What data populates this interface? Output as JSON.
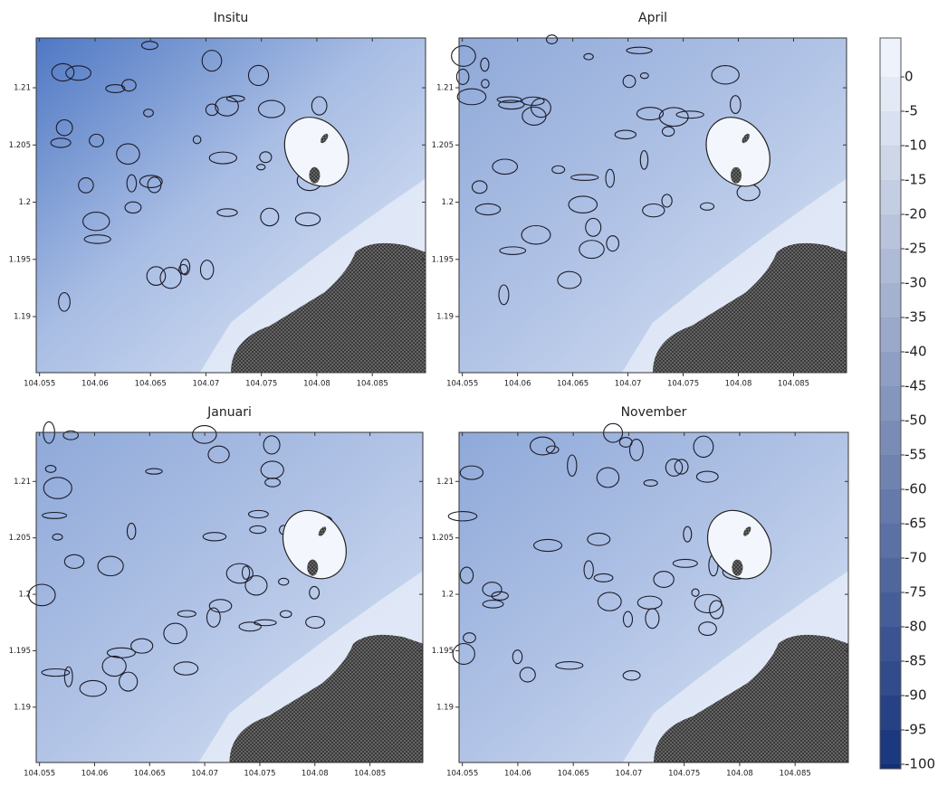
{
  "panels": [
    {
      "title": "Insitu",
      "xlim": [
        104.0547,
        104.0898
      ],
      "ylim": [
        1.1851,
        1.21435
      ],
      "xticks": [
        104.055,
        104.06,
        104.065,
        104.07,
        104.075,
        104.08,
        104.085
      ],
      "yticks": [
        1.19,
        1.195,
        1.2,
        1.205,
        1.21
      ]
    },
    {
      "title": "April",
      "xlim": [
        104.0547,
        104.0898
      ],
      "ylim": [
        1.1851,
        1.21435
      ],
      "xticks": [
        104.055,
        104.06,
        104.065,
        104.07,
        104.075,
        104.08,
        104.085
      ],
      "yticks": [
        1.19,
        1.195,
        1.2,
        1.205,
        1.21
      ]
    },
    {
      "title": "Januari",
      "xlim": [
        104.0547,
        104.0898
      ],
      "ylim": [
        1.1851,
        1.21435
      ],
      "xticks": [
        104.055,
        104.06,
        104.065,
        104.07,
        104.075,
        104.08,
        104.085
      ],
      "yticks": [
        1.19,
        1.195,
        1.2,
        1.205,
        1.21
      ]
    },
    {
      "title": "November",
      "xlim": [
        104.0547,
        104.0898
      ],
      "ylim": [
        1.1851,
        1.21435
      ],
      "xticks": [
        104.055,
        104.06,
        104.065,
        104.07,
        104.075,
        104.08,
        104.085
      ],
      "yticks": [
        1.19,
        1.195,
        1.2,
        1.205,
        1.21
      ]
    }
  ],
  "colorbar": {
    "lim": [
      5.66,
      -100.66
    ],
    "ticks": [
      0,
      -5,
      -10,
      -15,
      -20,
      -25,
      -30,
      -35,
      -40,
      -45,
      -50,
      -55,
      -60,
      -65,
      -70,
      -75,
      -80,
      -85,
      -90,
      -95,
      -100
    ],
    "colors": [
      "#eef3fb",
      "#112f78"
    ]
  }
}
